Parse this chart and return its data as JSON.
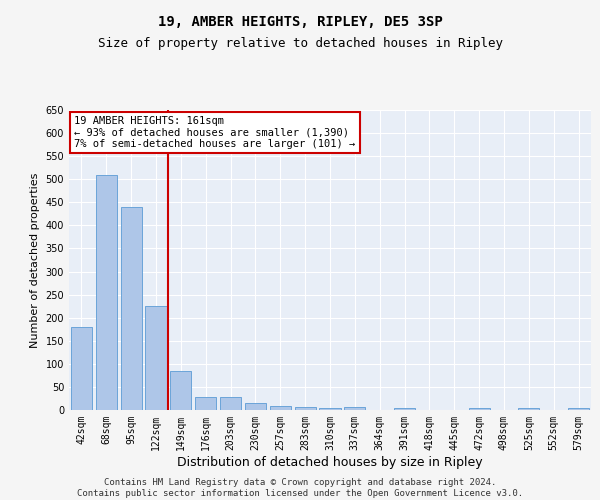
{
  "title1": "19, AMBER HEIGHTS, RIPLEY, DE5 3SP",
  "title2": "Size of property relative to detached houses in Ripley",
  "xlabel": "Distribution of detached houses by size in Ripley",
  "ylabel": "Number of detached properties",
  "categories": [
    "42sqm",
    "68sqm",
    "95sqm",
    "122sqm",
    "149sqm",
    "176sqm",
    "203sqm",
    "230sqm",
    "257sqm",
    "283sqm",
    "310sqm",
    "337sqm",
    "364sqm",
    "391sqm",
    "418sqm",
    "445sqm",
    "472sqm",
    "498sqm",
    "525sqm",
    "552sqm",
    "579sqm"
  ],
  "values": [
    180,
    510,
    440,
    225,
    85,
    28,
    28,
    15,
    8,
    7,
    5,
    7,
    0,
    5,
    0,
    0,
    5,
    0,
    5,
    0,
    5
  ],
  "bar_color": "#aec6e8",
  "bar_edge_color": "#5b9bd5",
  "vline_color": "#cc0000",
  "annotation_text": "19 AMBER HEIGHTS: 161sqm\n← 93% of detached houses are smaller (1,390)\n7% of semi-detached houses are larger (101) →",
  "annotation_box_color": "#ffffff",
  "annotation_box_edge_color": "#cc0000",
  "ylim": [
    0,
    650
  ],
  "yticks": [
    0,
    50,
    100,
    150,
    200,
    250,
    300,
    350,
    400,
    450,
    500,
    550,
    600,
    650
  ],
  "background_color": "#e8eef7",
  "grid_color": "#ffffff",
  "footer_text": "Contains HM Land Registry data © Crown copyright and database right 2024.\nContains public sector information licensed under the Open Government Licence v3.0.",
  "title1_fontsize": 10,
  "title2_fontsize": 9,
  "xlabel_fontsize": 9,
  "ylabel_fontsize": 8,
  "tick_fontsize": 7,
  "annotation_fontsize": 7.5,
  "footer_fontsize": 6.5
}
